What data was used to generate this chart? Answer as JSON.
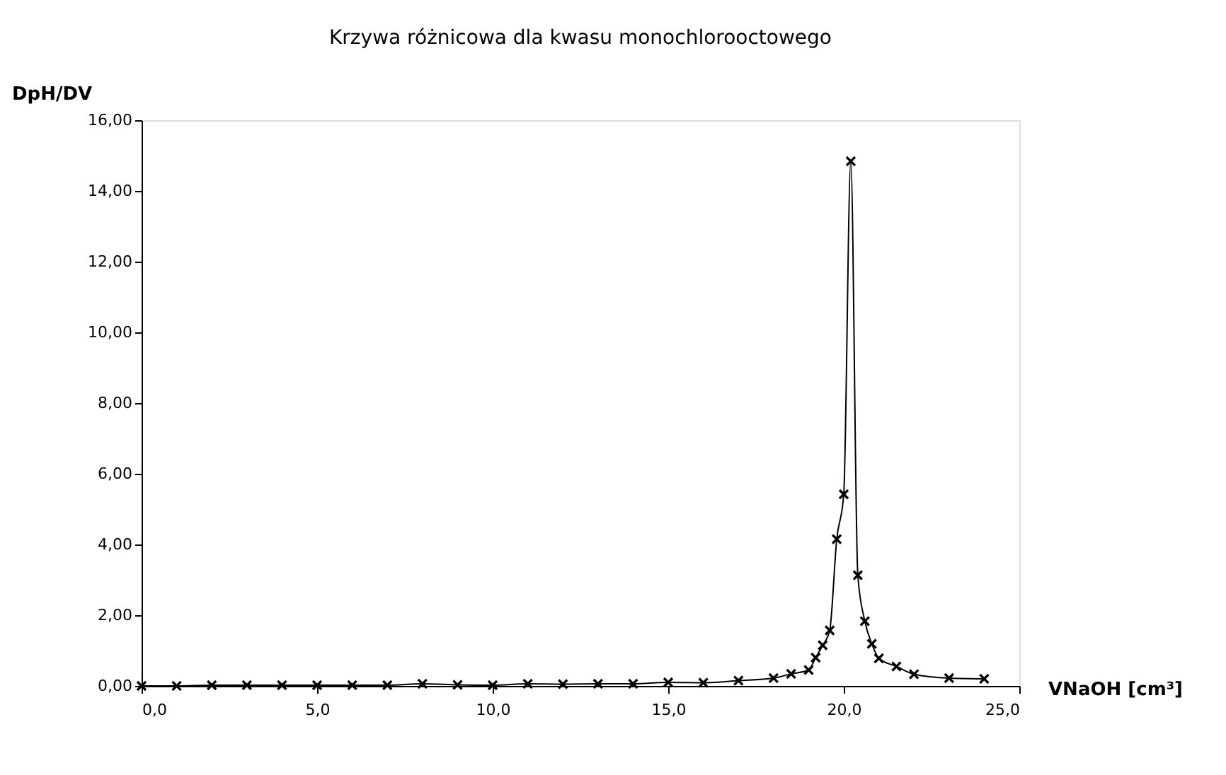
{
  "chart_data": {
    "type": "line",
    "title": "Krzywa różnicowa dla kwasu monochlorooctowego",
    "xlabel": "VNaOH [cm³]",
    "ylabel": "DpH/DV",
    "x": [
      0,
      1,
      2,
      3,
      4,
      5,
      6,
      7,
      8,
      9,
      10,
      11,
      12,
      13,
      14,
      15,
      16,
      17,
      18,
      18.5,
      19,
      19.2,
      19.4,
      19.6,
      19.8,
      20.0,
      20.2,
      20.4,
      20.6,
      20.8,
      21.0,
      21.5,
      22.0,
      23.0,
      24.0
    ],
    "series": [
      {
        "color": "#000000",
        "values": [
          0,
          0,
          0.02,
          0.02,
          0.02,
          0.02,
          0.02,
          0.02,
          0.06,
          0.03,
          0.02,
          0.06,
          0.05,
          0.06,
          0.06,
          0.1,
          0.09,
          0.15,
          0.22,
          0.34,
          0.45,
          0.8,
          1.15,
          1.57,
          4.15,
          5.42,
          14.84,
          3.13,
          1.83,
          1.19,
          0.78,
          0.55,
          0.33,
          0.22,
          0.2
        ]
      }
    ],
    "xlim": [
      0,
      25
    ],
    "ylim": [
      0,
      16
    ],
    "xticks": [
      {
        "value": 0,
        "label": "0,0"
      },
      {
        "value": 5,
        "label": "5,0"
      },
      {
        "value": 10,
        "label": "10,0"
      },
      {
        "value": 15,
        "label": "15,0"
      },
      {
        "value": 20,
        "label": "20,0"
      },
      {
        "value": 25,
        "label": "25,0"
      }
    ],
    "yticks": [
      {
        "value": 0,
        "label": "0,00"
      },
      {
        "value": 2,
        "label": "2,00"
      },
      {
        "value": 4,
        "label": "4,00"
      },
      {
        "value": 6,
        "label": "6,00"
      },
      {
        "value": 8,
        "label": "8,00"
      },
      {
        "value": 10,
        "label": "10,00"
      },
      {
        "value": 12,
        "label": "12,00"
      },
      {
        "value": 14,
        "label": "14,00"
      },
      {
        "value": 16,
        "label": "16,00"
      }
    ],
    "grid": false,
    "marker": "cross",
    "line_style": "solid"
  }
}
